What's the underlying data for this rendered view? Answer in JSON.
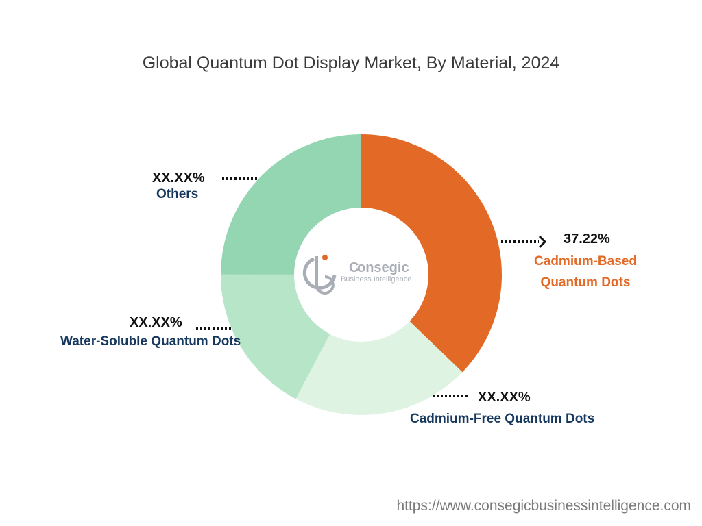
{
  "title": "Global Quantum Dot Display Market, By Material, 2024",
  "chart_data": {
    "type": "pie",
    "style": "donut",
    "title": "Global Quantum Dot Display Market, By Material, 2024",
    "slices": [
      {
        "name": "Cadmium-Based Quantum Dots",
        "value": 37.22,
        "label": "37.22%",
        "label_lines": [
          "Cadmium-Based",
          "Quantum Dots"
        ],
        "color": "#e36a26",
        "label_color": "#e36a26"
      },
      {
        "name": "Cadmium-Free Quantum Dots",
        "value": 20.5,
        "label": "XX.XX%",
        "label_lines": [
          "Cadmium-Free Quantum Dots"
        ],
        "color": "#dff3e3",
        "label_color": "#16385f"
      },
      {
        "name": "Water-Soluble Quantum Dots",
        "value": 17.3,
        "label": "XX.XX%",
        "label_lines": [
          "Water-Soluble Quantum Dots"
        ],
        "color": "#b6e5c7",
        "label_color": "#16385f"
      },
      {
        "name": "Others",
        "value": 24.98,
        "label": "XX.XX%",
        "label_lines": [
          "Others"
        ],
        "color": "#94d6b1",
        "label_color": "#16385f"
      }
    ]
  },
  "logo": {
    "name": "Consegic",
    "tagline": "Business Intelligence",
    "accent_color": "#e36a26"
  },
  "footer_url": "https://www.consegicbusinessintelligence.com"
}
